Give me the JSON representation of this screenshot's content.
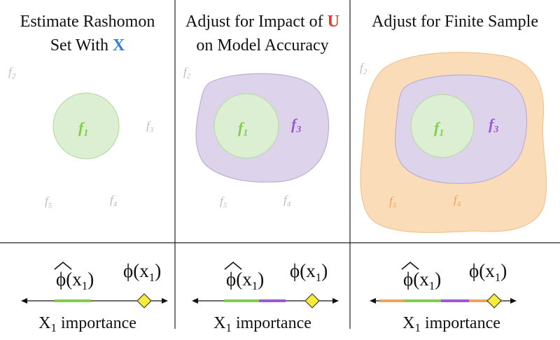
{
  "panels": [
    {
      "title_line1": "Estimate Rashomon",
      "title_line2_prefix": "Set With ",
      "title_line2_var": "X",
      "models": [
        {
          "name": "f",
          "sub": "2",
          "highlight": false
        },
        {
          "name": "f",
          "sub": "1",
          "highlight": true,
          "color": "#7fcf4a"
        },
        {
          "name": "f",
          "sub": "3",
          "highlight": false
        },
        {
          "name": "f",
          "sub": "5",
          "highlight": false
        },
        {
          "name": "f",
          "sub": "4",
          "highlight": false
        }
      ],
      "importance": {
        "phi_hat": "ϕ",
        "phi_hat_arg": "(x",
        "phi_hat_sub": "1",
        "phi": "ϕ(x",
        "phi_sub": "1",
        "close": ")",
        "xlabel_X": "X",
        "xlabel_sub": "1",
        "xlabel_rest": " importance"
      }
    },
    {
      "title_line1_prefix": "Adjust for Impact of ",
      "title_line1_var": "U",
      "title_line2": "on Model Accuracy",
      "models": [
        {
          "name": "f",
          "sub": "2",
          "highlight": false
        },
        {
          "name": "f",
          "sub": "1",
          "highlight": true,
          "color": "#7fcf4a"
        },
        {
          "name": "f",
          "sub": "3",
          "highlight": true,
          "color": "#9b59d6"
        },
        {
          "name": "f",
          "sub": "5",
          "highlight": false
        },
        {
          "name": "f",
          "sub": "4",
          "highlight": false
        }
      ],
      "importance": {
        "phi_hat": "ϕ",
        "phi_hat_arg": "(x",
        "phi_hat_sub": "1",
        "phi": "ϕ(x",
        "phi_sub": "1",
        "close": ")",
        "xlabel_X": "X",
        "xlabel_sub": "1",
        "xlabel_rest": " importance"
      }
    },
    {
      "title_line1": "Adjust for Finite Sample",
      "models": [
        {
          "name": "f",
          "sub": "2",
          "highlight": false
        },
        {
          "name": "f",
          "sub": "1",
          "highlight": true,
          "color": "#7fcf4a"
        },
        {
          "name": "f",
          "sub": "3",
          "highlight": true,
          "color": "#9b59d6"
        },
        {
          "name": "f",
          "sub": "5",
          "highlight": true,
          "color": "#f0a35a"
        },
        {
          "name": "f",
          "sub": "4",
          "highlight": true,
          "color": "#f0a35a"
        }
      ],
      "importance": {
        "phi_hat": "ϕ",
        "phi_hat_arg": "(x",
        "phi_hat_sub": "1",
        "phi": "ϕ(x",
        "phi_sub": "1",
        "close": ")",
        "xlabel_X": "X",
        "xlabel_sub": "1",
        "xlabel_rest": " importance"
      }
    }
  ],
  "colors": {
    "x_var": "#2f7fe0",
    "u_var": "#e03a2a",
    "green_fill": "#dcefd3",
    "green_stroke": "#b7dca6",
    "green_bar": "#7fcf4a",
    "purple_fill": "#ddd3ea",
    "purple_stroke": "#bcaed6",
    "purple_bar": "#9b59d6",
    "orange_fill": "#fbdcb8",
    "orange_stroke": "#f1c391",
    "orange_bar": "#f0a35a",
    "diamond": "#f7ec3a",
    "gray_label": "#bdbdbd"
  }
}
